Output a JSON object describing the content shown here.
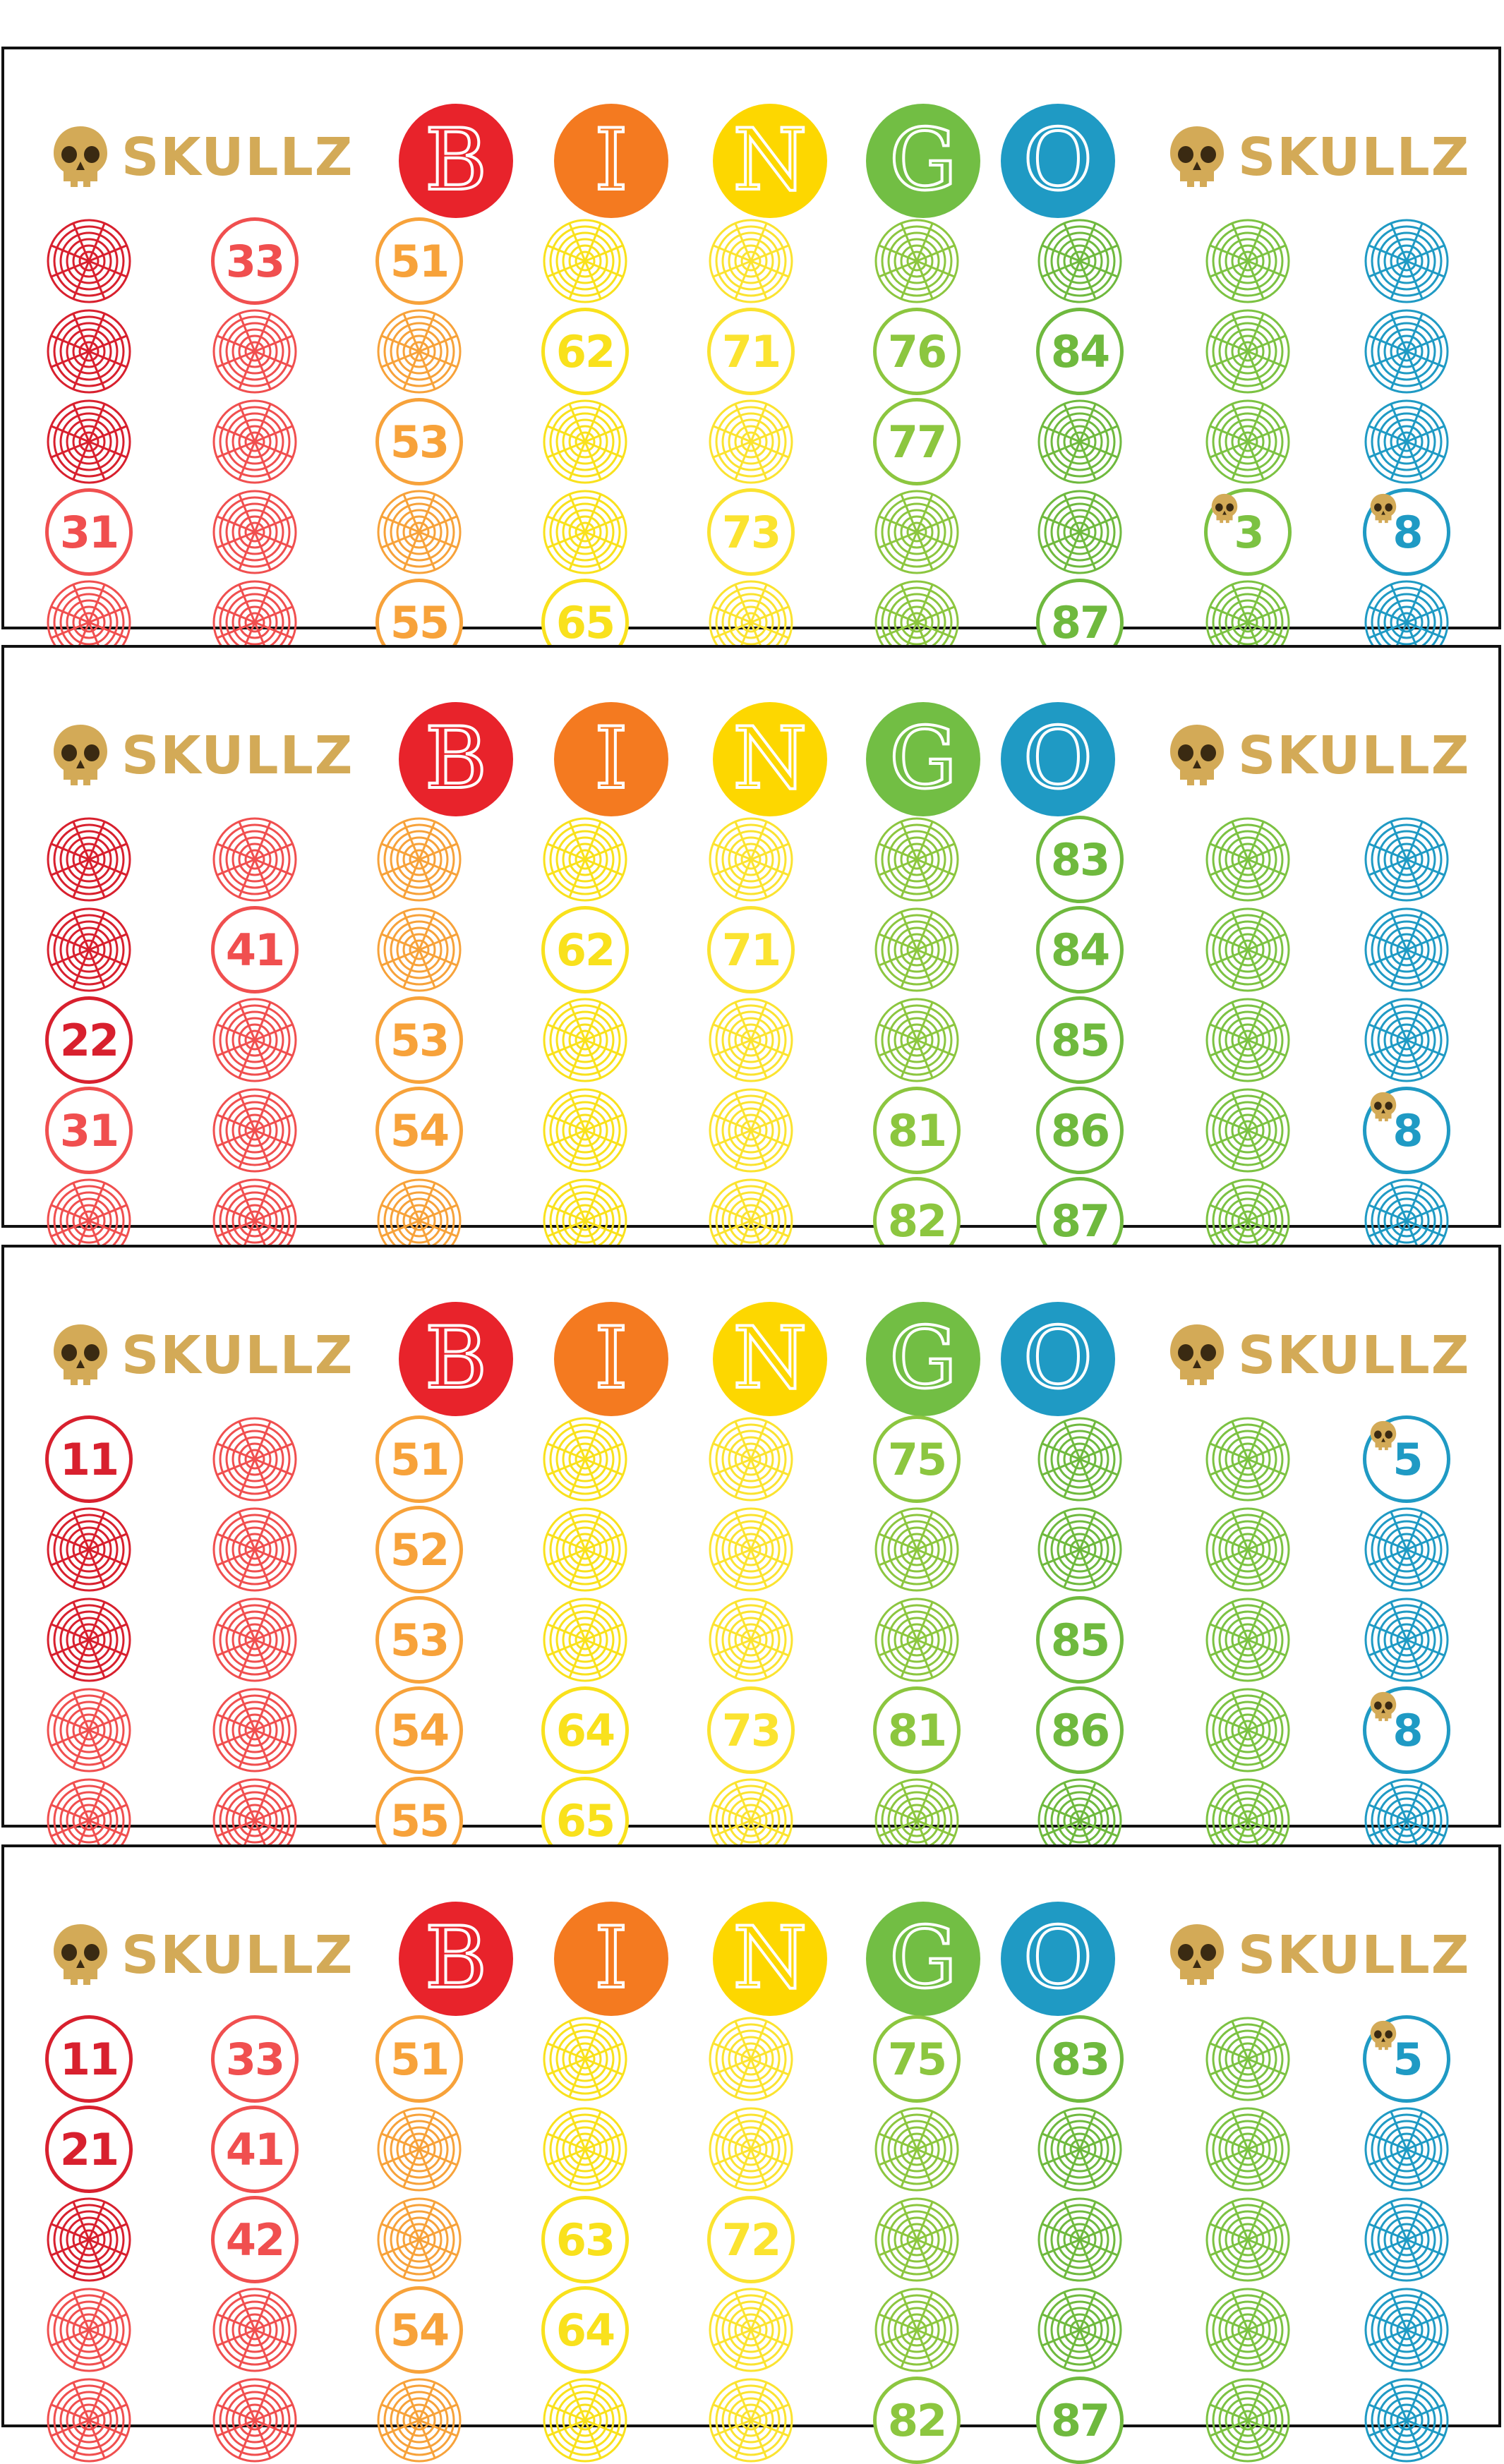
{
  "brand_text": "SKULLZ",
  "bingo_letters": [
    "B",
    "I",
    "N",
    "G",
    "O"
  ],
  "letter_colors": [
    "#e8232b",
    "#f47a20",
    "#fdd700",
    "#72be44",
    "#1f9ac4"
  ],
  "column_colors": [
    "#e8232b",
    "#f04f4f",
    "#f7a23a",
    "#f9e11c",
    "#fbe330",
    "#8cc63f",
    "#6fb93e",
    "#7cc242",
    "#1f9ac4"
  ],
  "brand_color": "#d3aa57",
  "cards": [
    {
      "rows": [
        [
          "",
          "33",
          "51",
          "",
          "",
          "",
          "",
          "",
          ""
        ],
        [
          "",
          "",
          "",
          "62",
          "71",
          "76",
          "84",
          "",
          ""
        ],
        [
          "",
          "",
          "53",
          "",
          "",
          "77",
          "",
          "",
          ""
        ],
        [
          "31",
          "",
          "",
          "",
          "73",
          "",
          "",
          "☠3",
          "☠8"
        ],
        [
          "",
          "",
          "55",
          "65",
          "",
          "",
          "87",
          "",
          ""
        ]
      ]
    },
    {
      "rows": [
        [
          "",
          "",
          "",
          "",
          "",
          "",
          "83",
          "",
          ""
        ],
        [
          "",
          "41",
          "",
          "62",
          "71",
          "",
          "84",
          "",
          ""
        ],
        [
          "22",
          "",
          "53",
          "",
          "",
          "",
          "85",
          "",
          ""
        ],
        [
          "31",
          "",
          "54",
          "",
          "",
          "81",
          "86",
          "",
          "☠8"
        ],
        [
          "",
          "",
          "",
          "",
          "",
          "82",
          "87",
          "",
          ""
        ]
      ]
    },
    {
      "rows": [
        [
          "11",
          "",
          "51",
          "",
          "",
          "75",
          "",
          "",
          "☠5"
        ],
        [
          "",
          "",
          "52",
          "",
          "",
          "",
          "",
          "",
          ""
        ],
        [
          "",
          "",
          "53",
          "",
          "",
          "",
          "85",
          "",
          ""
        ],
        [
          "",
          "",
          "54",
          "64",
          "73",
          "81",
          "86",
          "",
          "☠8"
        ],
        [
          "",
          "",
          "55",
          "65",
          "",
          "",
          "",
          "",
          ""
        ]
      ]
    },
    {
      "rows": [
        [
          "11",
          "33",
          "51",
          "",
          "",
          "75",
          "83",
          "",
          "☠5"
        ],
        [
          "21",
          "41",
          "",
          "",
          "",
          "",
          "",
          "",
          ""
        ],
        [
          "",
          "42",
          "",
          "63",
          "72",
          "",
          "",
          "",
          ""
        ],
        [
          "",
          "",
          "54",
          "64",
          "",
          "",
          "",
          "",
          ""
        ],
        [
          "",
          "",
          "",
          "",
          "",
          "82",
          "87",
          "",
          ""
        ]
      ]
    }
  ]
}
